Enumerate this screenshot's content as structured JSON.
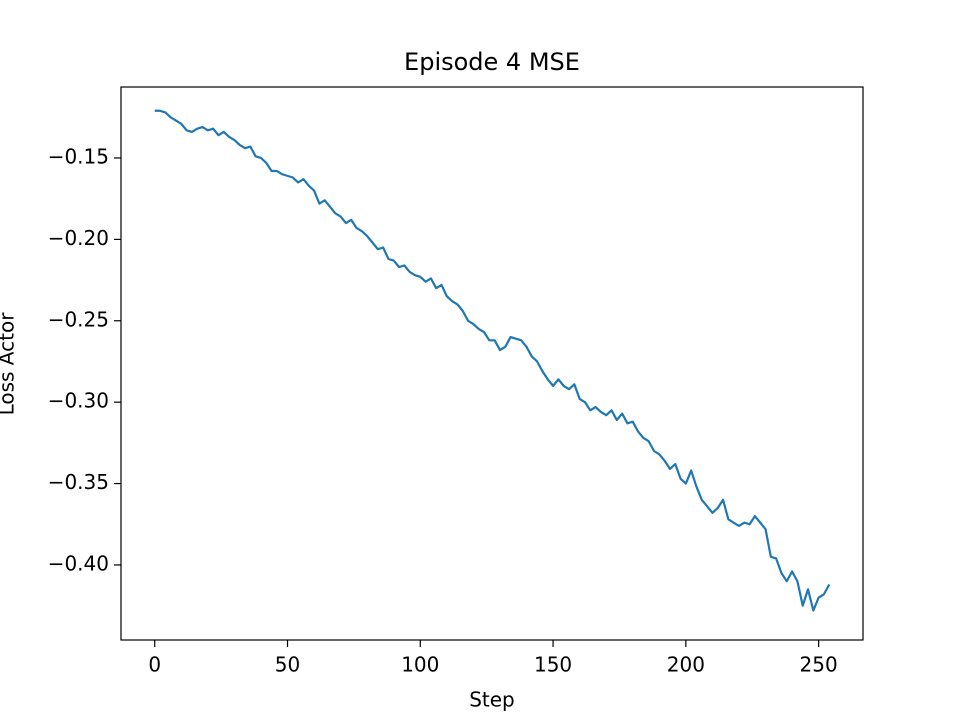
{
  "chart_data": {
    "type": "line",
    "title": "Episode 4 MSE",
    "x_label": "Step",
    "y_label": "Loss Actor",
    "series": [
      {
        "name": "Loss Actor",
        "color": "#1f77b4",
        "x": [
          0,
          2,
          4,
          6,
          8,
          10,
          12,
          14,
          16,
          18,
          20,
          22,
          24,
          26,
          28,
          30,
          32,
          34,
          36,
          38,
          40,
          42,
          44,
          46,
          48,
          50,
          52,
          54,
          56,
          58,
          60,
          62,
          64,
          66,
          68,
          70,
          72,
          74,
          76,
          78,
          80,
          82,
          84,
          86,
          88,
          90,
          92,
          94,
          96,
          98,
          100,
          102,
          104,
          106,
          108,
          110,
          112,
          114,
          116,
          118,
          120,
          122,
          124,
          126,
          128,
          130,
          132,
          134,
          136,
          138,
          140,
          142,
          144,
          146,
          148,
          150,
          152,
          154,
          156,
          158,
          160,
          162,
          164,
          166,
          168,
          170,
          172,
          174,
          176,
          178,
          180,
          182,
          184,
          186,
          188,
          190,
          192,
          194,
          196,
          198,
          200,
          202,
          204,
          206,
          208,
          210,
          212,
          214,
          216,
          218,
          220,
          222,
          224,
          226,
          228,
          230,
          232,
          234,
          236,
          238,
          240,
          242,
          244,
          246,
          248,
          250,
          252,
          254
        ],
        "values": [
          -0.121,
          -0.121,
          -0.122,
          -0.125,
          -0.127,
          -0.129,
          -0.133,
          -0.134,
          -0.132,
          -0.131,
          -0.133,
          -0.132,
          -0.136,
          -0.134,
          -0.137,
          -0.139,
          -0.142,
          -0.144,
          -0.143,
          -0.149,
          -0.15,
          -0.153,
          -0.158,
          -0.158,
          -0.16,
          -0.161,
          -0.162,
          -0.165,
          -0.163,
          -0.167,
          -0.17,
          -0.178,
          -0.176,
          -0.18,
          -0.184,
          -0.186,
          -0.19,
          -0.188,
          -0.193,
          -0.195,
          -0.198,
          -0.202,
          -0.206,
          -0.205,
          -0.212,
          -0.213,
          -0.217,
          -0.216,
          -0.22,
          -0.222,
          -0.223,
          -0.226,
          -0.224,
          -0.23,
          -0.228,
          -0.235,
          -0.238,
          -0.24,
          -0.244,
          -0.25,
          -0.252,
          -0.255,
          -0.257,
          -0.262,
          -0.262,
          -0.268,
          -0.266,
          -0.26,
          -0.261,
          -0.262,
          -0.266,
          -0.272,
          -0.275,
          -0.281,
          -0.286,
          -0.29,
          -0.286,
          -0.29,
          -0.292,
          -0.289,
          -0.298,
          -0.3,
          -0.305,
          -0.303,
          -0.306,
          -0.308,
          -0.305,
          -0.311,
          -0.307,
          -0.313,
          -0.312,
          -0.318,
          -0.322,
          -0.324,
          -0.33,
          -0.332,
          -0.336,
          -0.341,
          -0.338,
          -0.347,
          -0.35,
          -0.342,
          -0.352,
          -0.36,
          -0.364,
          -0.368,
          -0.365,
          -0.36,
          -0.372,
          -0.374,
          -0.376,
          -0.374,
          -0.375,
          -0.37,
          -0.374,
          -0.378,
          -0.395,
          -0.396,
          -0.405,
          -0.41,
          -0.404,
          -0.41,
          -0.425,
          -0.415,
          -0.428,
          -0.42,
          -0.418,
          -0.412
        ]
      }
    ],
    "xlim": [
      -12.7,
      266.7
    ],
    "ylim": [
      -0.4461,
      -0.1064
    ],
    "xticks": [
      0,
      50,
      100,
      150,
      200,
      250
    ],
    "yticks": [
      {
        "value": -0.4,
        "label": "−0.40"
      },
      {
        "value": -0.35,
        "label": "−0.35"
      },
      {
        "value": -0.3,
        "label": "−0.30"
      },
      {
        "value": -0.25,
        "label": "−0.25"
      },
      {
        "value": -0.2,
        "label": "−0.20"
      },
      {
        "value": -0.15,
        "label": "−0.15"
      }
    ],
    "grid": false
  }
}
